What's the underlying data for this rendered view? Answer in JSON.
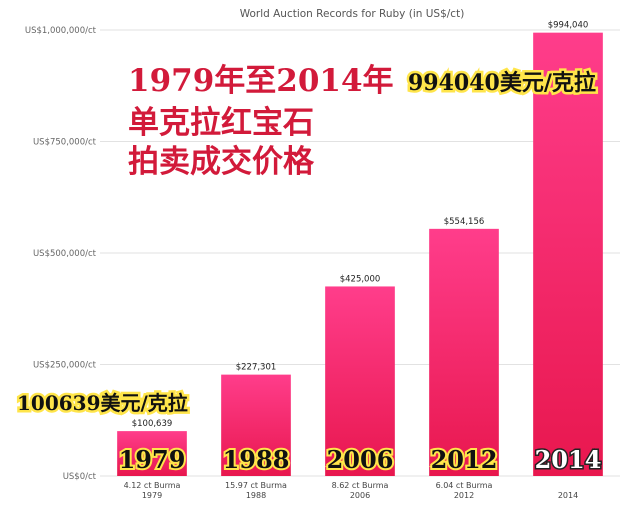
{
  "chart_data": {
    "type": "bar",
    "title": "World Auction Records for Ruby (in US$/ct)",
    "categories": [
      "4.12 ct Burma 1979",
      "15.97 ct Burma 1988",
      "8.62 ct Burma 2006",
      "6.04 ct Burma 2012",
      "2014"
    ],
    "category_lines": [
      [
        "4.12 ct Burma",
        "1979"
      ],
      [
        "15.97 ct Burma",
        "1988"
      ],
      [
        "8.62 ct Burma",
        "2006"
      ],
      [
        "6.04 ct Burma",
        "2012"
      ],
      [
        "",
        "2014"
      ]
    ],
    "values": [
      100639,
      227301,
      425000,
      554156,
      994040
    ],
    "value_labels": [
      "$100,639",
      "$227,301",
      "$425,000",
      "$554,156",
      "$994,040"
    ],
    "ylim": [
      0,
      1000000
    ],
    "yticks": [
      0,
      250000,
      500000,
      750000,
      1000000
    ],
    "ytick_labels": [
      "US$0/ct",
      "US$250,000/ct",
      "US$500,000/ct",
      "US$750,000/ct",
      "US$1,000,000/ct"
    ],
    "grid": true,
    "bar_color_top": "#ff3d8b",
    "bar_color_bottom": "#e8174e"
  },
  "overlay": {
    "headline_lines": [
      "1979年至2014年",
      "单克拉红宝石",
      "拍卖成交价格"
    ],
    "top_price_note": "994040美元/克拉",
    "low_price_note": "100639美元/克拉",
    "year_tags": [
      "1979",
      "1988",
      "2006",
      "2012",
      "2014"
    ],
    "colors": {
      "red_text": "#d21a3a",
      "highlight": "#ffe54a"
    }
  }
}
